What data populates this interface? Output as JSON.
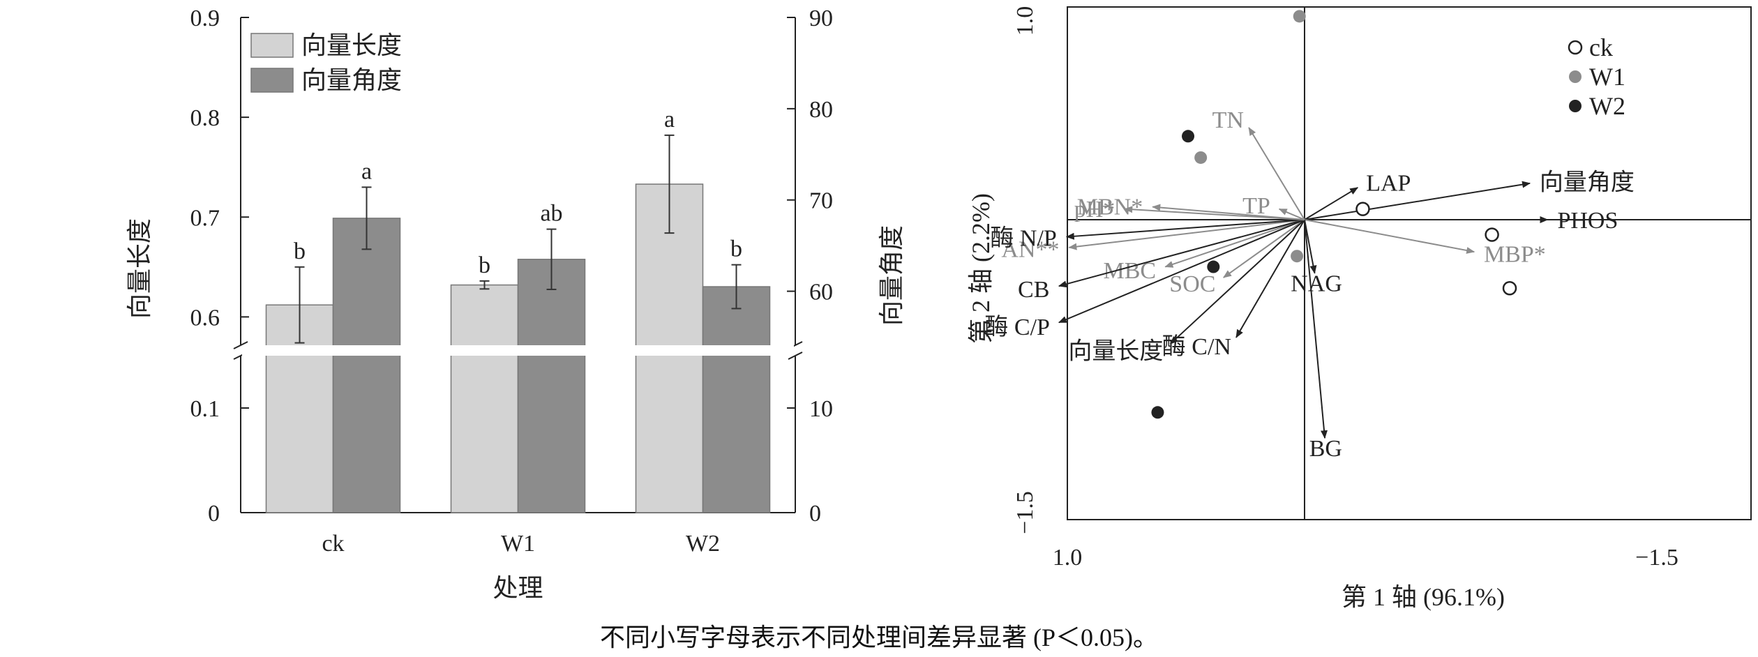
{
  "chart_data": [
    {
      "type": "bar",
      "title": "",
      "xlabel": "处理",
      "ylabel": "向量长度",
      "y2label": "向量角度",
      "categories": [
        "ck",
        "W1",
        "W2"
      ],
      "ylim": [
        0,
        0.9
      ],
      "y_axis_break": [
        0.15,
        0.58
      ],
      "yticks": [
        "0",
        "0.1",
        "0.6",
        "0.7",
        "0.8",
        "0.9"
      ],
      "y2lim": [
        0,
        90
      ],
      "y2_axis_break": [
        15,
        55
      ],
      "y2ticks": [
        "0",
        "10",
        "60",
        "70",
        "80",
        "90"
      ],
      "legend_position": "top-left",
      "series": [
        {
          "name": "向量长度",
          "axis": "left",
          "color": "#d3d3d3",
          "values": [
            0.612,
            0.632,
            0.733
          ],
          "errors": [
            0.038,
            0.004,
            0.049
          ],
          "significance": [
            "b",
            "b",
            "a"
          ]
        },
        {
          "name": "向量角度",
          "axis": "right",
          "color": "#8c8c8c",
          "values": [
            68.0,
            63.5,
            60.5
          ],
          "errors": [
            3.4,
            3.3,
            2.4
          ],
          "significance": [
            "a",
            "ab",
            "b"
          ]
        }
      ]
    },
    {
      "type": "scatter",
      "title": "",
      "xlabel": "第 1 轴 (96.1%)",
      "ylabel": "第 2 轴 (2.2%)",
      "xticks": [
        "1.0",
        "−1.5"
      ],
      "yticks": [
        "1.0",
        "−1.5"
      ],
      "xlim": [
        1.0,
        -1.5
      ],
      "ylim": [
        -1.5,
        1.0
      ],
      "legend_position": "top-right",
      "sample_groups": [
        {
          "name": "ck",
          "style": "hollow",
          "color": "#222222",
          "points": [
            [
              -0.23,
              0.05
            ],
            [
              -0.74,
              -0.07
            ],
            [
              -0.81,
              -0.32
            ]
          ]
        },
        {
          "name": "W1",
          "style": "filled",
          "color": "#8c8c8c",
          "points": [
            [
              0.02,
              0.95
            ],
            [
              0.41,
              0.29
            ],
            [
              0.03,
              -0.17
            ]
          ]
        },
        {
          "name": "W2",
          "style": "filled",
          "color": "#222222",
          "points": [
            [
              0.46,
              0.39
            ],
            [
              0.36,
              -0.22
            ],
            [
              0.58,
              -0.9
            ]
          ]
        }
      ],
      "vectors": [
        {
          "label": "LAP",
          "color": "#222222",
          "x": -0.21,
          "y": 0.15
        },
        {
          "label": "向量角度",
          "color": "#222222",
          "x": -0.89,
          "y": 0.17
        },
        {
          "label": "PHOS",
          "color": "#222222",
          "x": -0.96,
          "y": 0.0
        },
        {
          "label": "MBP*",
          "color": "#8c8c8c",
          "x": -0.67,
          "y": -0.15
        },
        {
          "label": "NAG",
          "color": "#222222",
          "x": -0.04,
          "y": -0.25
        },
        {
          "label": "BG",
          "color": "#222222",
          "x": -0.08,
          "y": -1.02
        },
        {
          "label": "酶 C/N",
          "color": "#222222",
          "x": 0.27,
          "y": -0.55
        },
        {
          "label": "SOC",
          "color": "#8c8c8c",
          "x": 0.32,
          "y": -0.27
        },
        {
          "label": "MBC",
          "color": "#8c8c8c",
          "x": 0.55,
          "y": -0.22
        },
        {
          "label": "向量长度",
          "color": "#222222",
          "x": 0.53,
          "y": -0.58
        },
        {
          "label": "酶 C/P",
          "color": "#222222",
          "x": 0.97,
          "y": -0.48
        },
        {
          "label": "CB",
          "color": "#222222",
          "x": 0.97,
          "y": -0.31
        },
        {
          "label": "AN**",
          "color": "#8c8c8c",
          "x": 0.93,
          "y": -0.13
        },
        {
          "label": "酶 N/P",
          "color": "#222222",
          "x": 0.94,
          "y": -0.08
        },
        {
          "label": "pH*",
          "color": "#8c8c8c",
          "x": 0.71,
          "y": 0.05
        },
        {
          "label": "MBN*",
          "color": "#8c8c8c",
          "x": 0.6,
          "y": 0.06
        },
        {
          "label": "TP",
          "color": "#8c8c8c",
          "x": 0.1,
          "y": 0.05
        },
        {
          "label": "TN",
          "color": "#8c8c8c",
          "x": 0.22,
          "y": 0.43
        }
      ]
    }
  ],
  "caption": "不同小写字母表示不同处理间差异显著 (P＜0.05)。"
}
